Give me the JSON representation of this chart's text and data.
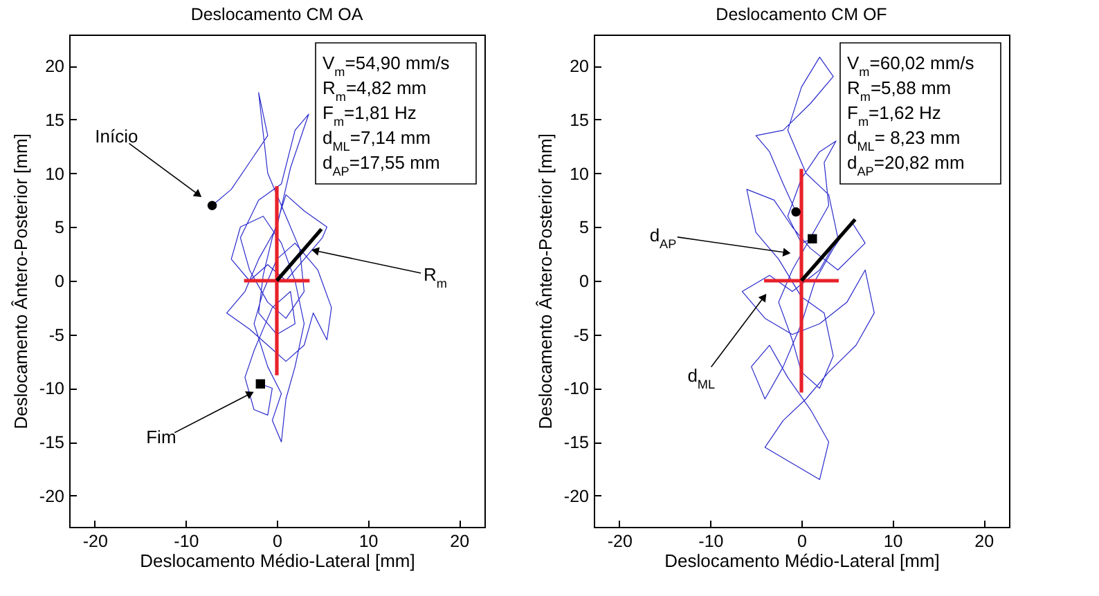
{
  "chart_data": [
    {
      "type": "line",
      "title": "Deslocamento CM OA",
      "xlabel": "Deslocamento Médio-Lateral [mm]",
      "ylabel": "Deslocamento Ântero-Posterior [mm]",
      "xlim": [
        -22.8,
        22.8
      ],
      "ylim": [
        -22.9,
        22.9
      ],
      "xticks": [
        -20,
        -10,
        0,
        10,
        20
      ],
      "yticks": [
        -20,
        -15,
        -10,
        -5,
        0,
        5,
        10,
        15,
        20
      ],
      "grid": false,
      "series": [
        {
          "color": "#2a2acc",
          "x": [
            -7.1,
            -5.0,
            -3.0,
            -1.0,
            -2.0,
            -1.0,
            1.0,
            2.5,
            3.0,
            1.0,
            -1.0,
            -3.0,
            -4.0,
            -2.0,
            0.5,
            2.0,
            3.5,
            1.5,
            0.0,
            -2.0,
            -3.5,
            -5.5,
            -3.0,
            -1.0,
            1.0,
            3.0,
            4.0,
            5.5,
            6.0,
            4.5,
            2.0,
            0.0,
            -1.5,
            -2.5,
            -1.0,
            0.5,
            -0.5,
            0.5,
            1.0,
            2.0,
            3.0,
            2.0,
            0.5,
            -1.5,
            -4.0,
            -5.0,
            -3.0,
            -1.0,
            1.0,
            3.0,
            5.0,
            5.5,
            3.0,
            1.0,
            -0.5,
            -1.5,
            -2.0,
            0.0,
            2.0,
            1.5,
            -0.5,
            -2.5,
            -3.5,
            -2.5,
            -1.0,
            -0.5,
            -1.8
          ],
          "values": [
            7.0,
            8.5,
            11.0,
            13.5,
            17.5,
            10.0,
            6.0,
            3.0,
            -1.0,
            -3.5,
            -2.0,
            1.0,
            4.0,
            7.5,
            9.0,
            14.0,
            15.5,
            10.5,
            5.0,
            2.0,
            -1.0,
            -3.0,
            -4.5,
            -6.0,
            -7.5,
            -6.0,
            -3.0,
            -5.5,
            -2.5,
            1.0,
            3.5,
            2.0,
            -1.0,
            -4.0,
            -8.0,
            -10.5,
            -13.0,
            -15.0,
            -11.0,
            -8.0,
            -4.0,
            0.0,
            3.5,
            6.0,
            5.0,
            2.0,
            0.0,
            1.5,
            0.0,
            2.0,
            4.0,
            5.0,
            6.5,
            8.0,
            4.0,
            0.5,
            -3.0,
            -5.0,
            -4.0,
            -1.0,
            -2.5,
            -6.5,
            -9.0,
            -12.0,
            -12.5,
            -10.0,
            -9.6
          ]
        },
        {
          "color": "#e8212a",
          "x": [
            -3.6,
            3.6
          ],
          "values": [
            0,
            0
          ]
        },
        {
          "color": "#e8212a",
          "x": [
            0,
            0
          ],
          "values": [
            8.8,
            -8.8
          ]
        },
        {
          "color": "#000000",
          "x": [
            0,
            4.9
          ],
          "values": [
            0,
            4.8
          ]
        },
        {
          "type": "scatter",
          "marker": "circle",
          "color": "#000000",
          "x": [
            -7.1
          ],
          "values": [
            7.0
          ]
        },
        {
          "type": "scatter",
          "marker": "square",
          "color": "#000000",
          "x": [
            -1.8
          ],
          "values": [
            -9.6
          ]
        }
      ],
      "annotations": [
        "V$_{m}$=54,90 mm/s",
        "R$_{m}$=4,82 mm",
        "F$_{m}$=1,81 Hz",
        "d$_{ML}$=7,14 mm",
        "d$_{AP}$=17,55 mm",
        {
          "text": "Início",
          "x": -8.6,
          "y": 8.0
        },
        {
          "text": "Fim",
          "x": -2.9,
          "y": -10.5
        },
        {
          "text": "R$_{m}$",
          "x": 4.2,
          "y": 2.8
        }
      ]
    },
    {
      "type": "line",
      "title": "Deslocamento CM OF",
      "xlabel": "Deslocamento Médio-Lateral [mm]",
      "ylabel": "Deslocamento Ântero-Posterior [mm]",
      "xlim": [
        -22.8,
        22.8
      ],
      "ylim": [
        -22.9,
        22.9
      ],
      "xticks": [
        -20,
        -10,
        0,
        10,
        20
      ],
      "yticks": [
        -20,
        -15,
        -10,
        -5,
        0,
        5,
        10,
        15,
        20
      ],
      "grid": false,
      "series": [
        {
          "color": "#2a2acc",
          "x": [
            -0.6,
            -2.0,
            -3.5,
            -5.0,
            -2.0,
            1.0,
            3.5,
            2.0,
            0.0,
            -1.5,
            0.5,
            3.0,
            4.0,
            2.0,
            -1.0,
            -3.5,
            -6.5,
            -4.0,
            -1.0,
            2.0,
            5.0,
            7.0,
            8.0,
            6.0,
            3.0,
            0.5,
            -2.0,
            -4.0,
            -1.0,
            2.0,
            3.0,
            1.0,
            -1.5,
            -3.5,
            -5.5,
            -4.0,
            -2.0,
            0.0,
            1.5,
            3.5,
            5.5,
            7.0,
            4.0,
            1.0,
            -1.0,
            -3.0,
            -6.0,
            -5.0,
            -2.5,
            0.0,
            2.5,
            3.5,
            2.0,
            0.0,
            -1.0,
            -2.5,
            -1.0,
            1.0,
            3.0,
            2.5,
            3.8,
            2.0,
            0.0,
            -1.5,
            0.0,
            1.2
          ],
          "values": [
            6.4,
            9.0,
            12.0,
            13.5,
            14.0,
            16.5,
            19.0,
            20.8,
            18.0,
            14.0,
            10.0,
            8.0,
            4.0,
            1.0,
            -1.0,
            0.5,
            -1.0,
            -3.5,
            -5.0,
            -4.0,
            -2.0,
            1.0,
            -3.0,
            -6.0,
            -8.5,
            -11.0,
            -13.0,
            -15.5,
            -17.0,
            -18.5,
            -15.0,
            -12.0,
            -9.0,
            -6.0,
            -8.0,
            -11.0,
            -8.0,
            -4.0,
            0.0,
            3.0,
            5.5,
            3.5,
            1.0,
            3.0,
            5.0,
            7.5,
            8.5,
            4.5,
            2.0,
            -1.5,
            -3.0,
            -7.0,
            -10.0,
            -8.5,
            -5.5,
            -2.0,
            1.0,
            4.0,
            7.0,
            11.0,
            13.0,
            12.0,
            9.5,
            6.0,
            3.5,
            3.9
          ]
        },
        {
          "color": "#e8212a",
          "x": [
            -4.1,
            4.1
          ],
          "values": [
            0,
            0
          ]
        },
        {
          "color": "#e8212a",
          "x": [
            0,
            0
          ],
          "values": [
            10.4,
            -10.4
          ]
        },
        {
          "color": "#000000",
          "x": [
            0,
            5.9
          ],
          "values": [
            0,
            5.7
          ]
        },
        {
          "type": "scatter",
          "marker": "circle",
          "color": "#000000",
          "x": [
            -0.6
          ],
          "values": [
            6.4
          ]
        },
        {
          "type": "scatter",
          "marker": "square",
          "color": "#000000",
          "x": [
            1.2
          ],
          "values": [
            3.9
          ]
        }
      ],
      "annotations": [
        "V$_{m}$=60,02 mm/s",
        "R$_{m}$=5,88 mm",
        "F$_{m}$=1,62 Hz",
        "d$_{ML}$= 8,23 mm",
        "d$_{AP}$=20,82 mm",
        {
          "text": "d$_{AP}$",
          "x": -1.6,
          "y": 2.6
        },
        {
          "text": "d$_{ML}$",
          "x": -4.1,
          "y": -1.5
        }
      ]
    }
  ]
}
